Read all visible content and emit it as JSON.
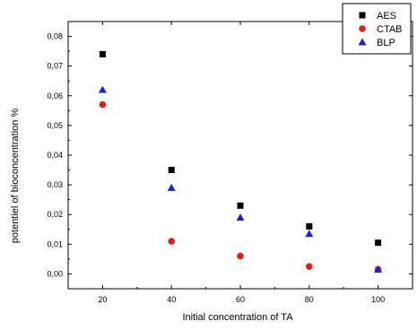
{
  "chart_data": {
    "type": "scatter",
    "title": "",
    "xlabel": "Initial concentration  of TA",
    "ylabel": "potentiel of bioconcentration %",
    "x": [
      20,
      40,
      60,
      80,
      100
    ],
    "x_ticks": [
      "20",
      "40",
      "60",
      "80",
      "100"
    ],
    "xlim": [
      10,
      110
    ],
    "ylim": [
      -0.005,
      0.085
    ],
    "y_ticks": [
      "0,00",
      "0,01",
      "0,02",
      "0,03",
      "0,04",
      "0,05",
      "0,06",
      "0,07",
      "0,08"
    ],
    "grid": false,
    "legend_position": "top-right",
    "series": [
      {
        "name": "AES",
        "marker": "square",
        "color": "#000000",
        "values": [
          0.074,
          0.035,
          0.023,
          0.016,
          0.0105
        ]
      },
      {
        "name": "CTAB",
        "marker": "circle",
        "color": "#e0201b",
        "values": [
          0.057,
          0.011,
          0.006,
          0.0025,
          0.0015
        ]
      },
      {
        "name": "BLP",
        "marker": "triangle",
        "color": "#1f1fd6",
        "values": [
          0.062,
          0.029,
          0.019,
          0.0135,
          0.0015
        ]
      }
    ]
  }
}
